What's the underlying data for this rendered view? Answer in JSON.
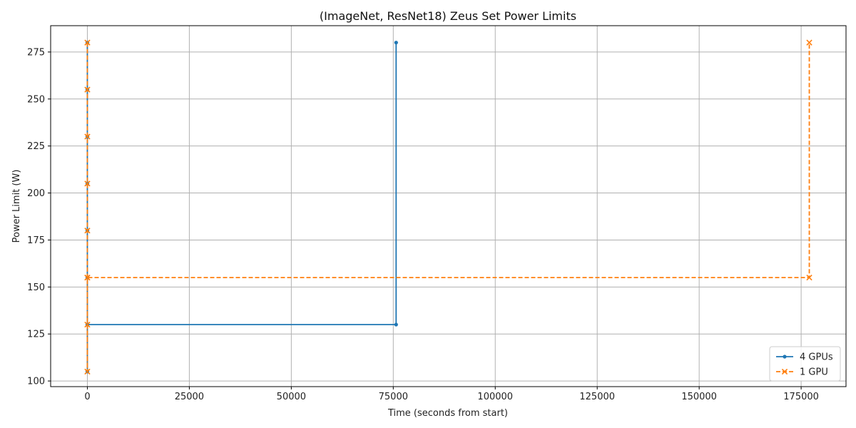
{
  "chart_data": {
    "type": "line",
    "title": "(ImageNet, ResNet18) Zeus Set Power Limits",
    "xlabel": "Time (seconds from start)",
    "ylabel": "Power Limit (W)",
    "xlim": [
      -9000,
      186000
    ],
    "ylim": [
      97,
      289
    ],
    "xticks": [
      0,
      25000,
      50000,
      75000,
      100000,
      125000,
      150000,
      175000
    ],
    "yticks": [
      100,
      125,
      150,
      175,
      200,
      225,
      250,
      275
    ],
    "grid": true,
    "legend_position": "lower-right",
    "series": [
      {
        "name": "4 GPUs",
        "color": "#1f77b4",
        "line_style": "solid",
        "marker": "point",
        "x": [
          0,
          0,
          0,
          0,
          0,
          0,
          0,
          0,
          0,
          75700,
          75700
        ],
        "y": [
          280,
          255,
          230,
          205,
          180,
          155,
          130,
          105,
          130,
          130,
          280
        ]
      },
      {
        "name": "1 GPU",
        "color": "#ff7f0e",
        "line_style": "dashed",
        "marker": "x",
        "x": [
          0,
          0,
          0,
          0,
          0,
          0,
          0,
          0,
          0,
          177000,
          177000
        ],
        "y": [
          280,
          255,
          230,
          205,
          180,
          155,
          130,
          105,
          155,
          155,
          280
        ]
      }
    ]
  }
}
